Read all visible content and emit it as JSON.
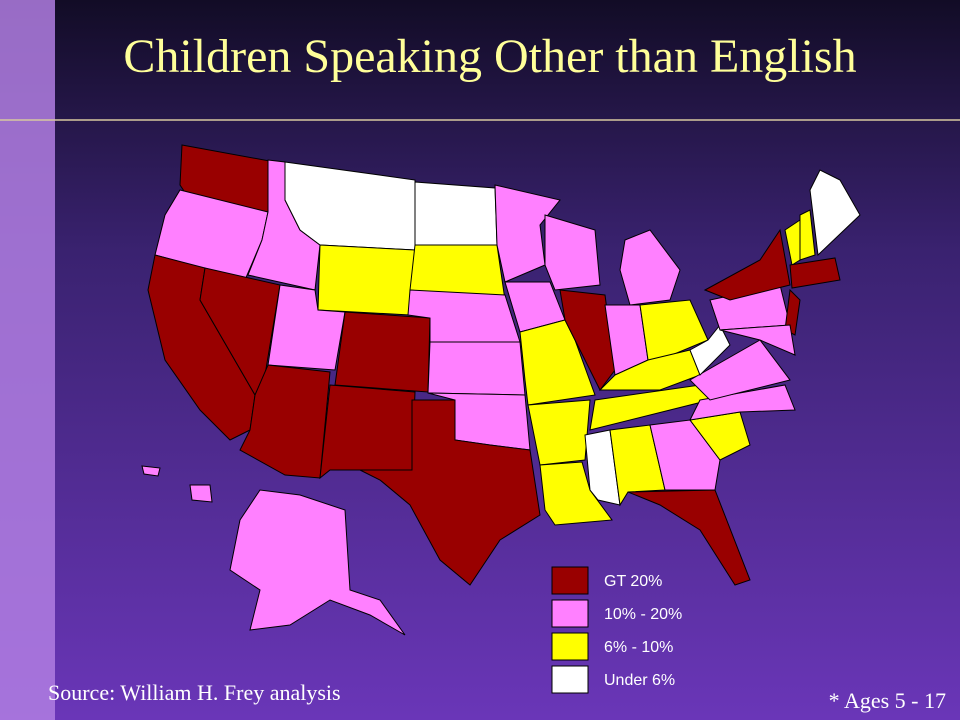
{
  "title": "Children Speaking Other than English",
  "legend": [
    {
      "label": "GT 20%",
      "color": "#990000"
    },
    {
      "label": "10% - 20%",
      "color": "#ff80ff"
    },
    {
      "label": "6% - 10%",
      "color": "#ffff00"
    },
    {
      "label": "Under 6%",
      "color": "#ffffff"
    }
  ],
  "source": "Source: William H. Frey analysis",
  "note": "* Ages 5 - 17"
}
